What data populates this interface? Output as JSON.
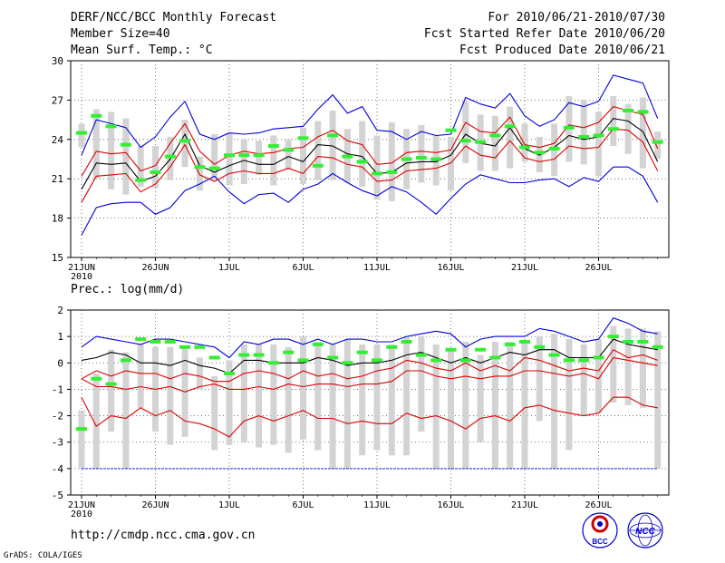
{
  "header": {
    "title": "DERF/NCC/BCC Monthly Forecast",
    "member_size": "Member Size=40",
    "variable_top": "Mean Surf. Temp.: °C",
    "fcst_for": "For 2010/06/21-2010/07/30",
    "fcst_started": "Fcst Started Refer Date 2010/06/20",
    "fcst_produced": "Fcst Produced Date 2010/06/21"
  },
  "footer": {
    "url": "http://cmdp.ncc.cma.gov.cn",
    "grads": "GrADS: COLA/IGES",
    "logo_bcc": "BCC",
    "logo_ncc": "NCC"
  },
  "chart_data": [
    {
      "type": "line",
      "title": "Mean Surf. Temp.: °C",
      "x_tick_labels": [
        "21JUN",
        "26JUN",
        "1JUL",
        "6JUL",
        "11JUL",
        "16JUL",
        "21JUL",
        "26JUL"
      ],
      "x_tick_days": [
        0,
        5,
        10,
        15,
        20,
        25,
        30,
        35
      ],
      "x_sublabel": "2010",
      "ylim": [
        15,
        30
      ],
      "y_ticks": [
        15,
        18,
        21,
        24,
        27,
        30
      ],
      "days": 40,
      "series": [
        {
          "name": "max",
          "color": "#0000dd",
          "values": [
            16.7,
            18.8,
            19.1,
            19.2,
            19.2,
            18.3,
            18.8,
            20.1,
            20.6,
            21.2,
            20.0,
            19.1,
            19.8,
            19.9,
            19.2,
            20.2,
            20.6,
            21.4,
            20.7,
            20.1,
            19.7,
            20.4,
            20.0,
            19.2,
            18.3,
            19.5,
            20.6,
            21.3,
            21.0,
            20.7,
            20.7,
            20.9,
            21.0,
            20.4,
            21.1,
            20.8,
            21.9,
            21.9,
            21.2,
            19.2
          ]
        },
        {
          "name": "p90",
          "color": "#0000dd",
          "values": [
            22.8,
            25.5,
            25.2,
            24.9,
            23.4,
            24.2,
            25.7,
            26.9,
            24.4,
            24.0,
            24.5,
            24.4,
            24.5,
            24.8,
            24.9,
            25.0,
            26.3,
            27.4,
            26.0,
            26.5,
            24.7,
            24.6,
            24.0,
            24.6,
            24.3,
            24.4,
            27.2,
            26.7,
            26.4,
            27.5,
            25.8,
            25.0,
            25.5,
            26.8,
            26.5,
            26.9,
            28.9,
            28.6,
            28.3,
            25.6
          ]
        },
        {
          "name": "upper",
          "color": "#dd0000",
          "values": [
            21.2,
            23.1,
            22.9,
            23.0,
            21.6,
            22.0,
            23.7,
            25.2,
            23.1,
            22.1,
            22.8,
            23.1,
            22.9,
            23.0,
            23.3,
            23.4,
            24.2,
            24.7,
            23.9,
            23.6,
            22.1,
            22.2,
            23.0,
            23.1,
            23.0,
            23.2,
            25.3,
            24.6,
            24.5,
            25.7,
            23.6,
            23.4,
            23.7,
            25.1,
            24.9,
            25.3,
            26.5,
            26.2,
            25.9,
            23.3
          ]
        },
        {
          "name": "mean",
          "color": "#000000",
          "values": [
            20.2,
            22.2,
            22.1,
            22.2,
            20.8,
            21.2,
            22.5,
            24.4,
            22.0,
            21.5,
            22.0,
            22.4,
            22.1,
            22.1,
            22.7,
            22.3,
            23.6,
            23.5,
            22.9,
            22.7,
            21.4,
            21.5,
            22.2,
            22.3,
            22.3,
            22.8,
            24.4,
            23.7,
            23.5,
            24.9,
            23.3,
            22.8,
            23.4,
            24.3,
            24.0,
            24.2,
            25.6,
            25.4,
            24.6,
            22.3
          ]
        },
        {
          "name": "lower",
          "color": "#dd0000",
          "values": [
            19.2,
            21.2,
            21.3,
            21.4,
            20.0,
            20.6,
            21.9,
            23.6,
            21.3,
            20.8,
            21.4,
            21.6,
            21.4,
            21.4,
            21.8,
            21.4,
            22.7,
            22.6,
            22.1,
            21.9,
            20.8,
            20.9,
            21.6,
            21.7,
            21.8,
            22.2,
            23.5,
            22.8,
            22.6,
            23.9,
            22.6,
            22.3,
            22.5,
            23.5,
            23.3,
            23.4,
            24.8,
            24.7,
            23.8,
            21.6
          ]
        }
      ],
      "box_low": [
        23.4,
        21.0,
        20.2,
        19.8,
        20.4,
        20.3,
        20.9,
        21.9,
        20.1,
        20.9,
        20.5,
        20.6,
        21.3,
        20.5,
        21.7,
        20.6,
        20.9,
        20.9,
        20.7,
        20.4,
        19.4,
        19.3,
        20.2,
        20.7,
        20.5,
        20.1,
        22.2,
        21.6,
        21.6,
        21.8,
        22.3,
        21.5,
        21.2,
        22.3,
        22.1,
        21.2,
        23.5,
        22.9,
        21.8,
        22.5
      ],
      "box_high": [
        25.2,
        26.3,
        26.1,
        25.6,
        23.5,
        23.5,
        24.2,
        25.5,
        22.7,
        24.4,
        24.5,
        24.0,
        23.9,
        24.3,
        24.0,
        24.9,
        25.4,
        26.2,
        24.8,
        25.4,
        24.3,
        25.3,
        24.8,
        25.1,
        24.3,
        24.2,
        26.9,
        25.9,
        25.8,
        26.5,
        25.2,
        24.2,
        25.2,
        27.3,
        27.0,
        26.1,
        27.3,
        26.7,
        27.2,
        24.6
      ],
      "observed": [
        24.5,
        25.8,
        25.0,
        23.6,
        20.9,
        21.5,
        22.7,
        23.9,
        21.9,
        21.8,
        22.8,
        22.8,
        22.8,
        23.5,
        23.2,
        24.1,
        22.0,
        24.3,
        22.7,
        22.3,
        21.4,
        21.5,
        22.5,
        22.6,
        22.5,
        24.7,
        23.9,
        23.8,
        24.3,
        25.0,
        23.4,
        23.0,
        23.3,
        24.9,
        24.2,
        24.3,
        24.8,
        26.2,
        26.1,
        23.8
      ]
    },
    {
      "type": "line",
      "title": "Prec.: log(mm/d)",
      "x_tick_labels": [
        "21JUN",
        "26JUN",
        "1JUL",
        "6JUL",
        "11JUL",
        "16JUL",
        "21JUL",
        "26JUL"
      ],
      "x_tick_days": [
        0,
        5,
        10,
        15,
        20,
        25,
        30,
        35
      ],
      "x_sublabel": "2010",
      "ylim": [
        -5,
        2
      ],
      "y_ticks": [
        -5,
        -4,
        -3,
        -2,
        -1,
        0,
        1,
        2
      ],
      "days": 40,
      "series": [
        {
          "name": "p90",
          "color": "#0000dd",
          "values": [
            0.6,
            1.0,
            0.9,
            0.8,
            0.7,
            0.9,
            0.9,
            0.8,
            0.7,
            0.6,
            0.2,
            0.8,
            0.7,
            0.9,
            0.9,
            0.7,
            0.9,
            0.7,
            0.9,
            0.9,
            0.8,
            0.8,
            1.0,
            1.1,
            1.2,
            1.1,
            0.6,
            0.9,
            1.0,
            1.0,
            1.0,
            1.3,
            1.2,
            1.0,
            0.8,
            0.9,
            1.7,
            1.5,
            1.2,
            1.1
          ]
        },
        {
          "name": "upper",
          "color": "#dd0000",
          "values": [
            -0.6,
            -0.3,
            -0.5,
            -0.3,
            -0.4,
            -0.4,
            -0.6,
            -0.4,
            -0.5,
            -0.7,
            -0.7,
            -0.4,
            -0.3,
            -0.4,
            -0.6,
            -0.3,
            -0.5,
            -0.4,
            -0.6,
            -0.5,
            -0.3,
            -0.2,
            0.1,
            0.0,
            -0.2,
            -0.3,
            0.0,
            -0.3,
            -0.1,
            -0.3,
            0.2,
            0.1,
            -0.1,
            -0.3,
            -0.2,
            -0.3,
            0.5,
            0.2,
            0.3,
            0.1
          ]
        },
        {
          "name": "mean",
          "color": "#000000",
          "values": [
            0.1,
            0.2,
            0.4,
            0.3,
            0.0,
            0.0,
            -0.1,
            0.1,
            -0.1,
            -0.2,
            -0.4,
            0.1,
            0.1,
            0.0,
            0.0,
            0.0,
            0.2,
            0.1,
            -0.1,
            0.0,
            0.0,
            0.1,
            0.3,
            0.4,
            0.2,
            0.0,
            0.2,
            0.0,
            0.2,
            0.4,
            0.3,
            0.5,
            0.5,
            0.2,
            0.2,
            0.2,
            0.9,
            0.7,
            0.6,
            0.5
          ]
        },
        {
          "name": "lower",
          "color": "#dd0000",
          "values": [
            -0.6,
            -0.9,
            -0.9,
            -1.0,
            -0.9,
            -1.0,
            -0.9,
            -1.1,
            -0.9,
            -0.8,
            -1.0,
            -1.0,
            -0.9,
            -1.0,
            -0.8,
            -0.9,
            -0.8,
            -0.8,
            -0.9,
            -0.8,
            -0.8,
            -0.7,
            -0.3,
            -0.3,
            -0.5,
            -0.6,
            -0.5,
            -0.6,
            -0.5,
            -0.5,
            -0.3,
            -0.3,
            -0.4,
            -0.5,
            -0.4,
            -0.6,
            0.2,
            0.1,
            0.0,
            -0.1
          ]
        },
        {
          "name": "min",
          "color": "#dd0000",
          "values": [
            -1.3,
            -2.4,
            -2.0,
            -2.1,
            -1.7,
            -2.0,
            -1.8,
            -2.2,
            -2.3,
            -2.5,
            -2.8,
            -2.2,
            -2.0,
            -2.2,
            -2.0,
            -1.8,
            -2.1,
            -2.1,
            -2.3,
            -2.2,
            -2.3,
            -2.3,
            -1.9,
            -2.1,
            -2.0,
            -2.2,
            -2.5,
            -2.1,
            -2.0,
            -2.2,
            -1.7,
            -1.6,
            -1.8,
            -1.9,
            -2.0,
            -1.9,
            -1.3,
            -1.3,
            -1.6,
            -1.7
          ]
        },
        {
          "name": "floor",
          "color": "#0000dd",
          "values": [
            -4,
            -4,
            -4,
            -4,
            -4,
            -4,
            -4,
            -4,
            -4,
            -4,
            -4,
            -4,
            -4,
            -4,
            -4,
            -4,
            -4,
            -4,
            -4,
            -4,
            -4,
            -4,
            -4,
            -4,
            -4,
            -4,
            -4,
            -4,
            -4,
            -4,
            -4,
            -4,
            -4,
            -4,
            -4,
            -4,
            -4,
            -4,
            -4,
            -4
          ]
        }
      ],
      "box_low": [
        -4.0,
        -4.0,
        -2.6,
        -4.0,
        -1.7,
        -2.6,
        -3.1,
        -2.8,
        -1.0,
        -3.3,
        -3.1,
        -3.0,
        -3.2,
        -3.1,
        -3.4,
        -2.9,
        -3.3,
        -4.0,
        -4.0,
        -3.5,
        -3.3,
        -3.5,
        -3.5,
        -2.6,
        -4.0,
        -4.0,
        -4.0,
        -3.0,
        -4.0,
        -4.0,
        -4.0,
        -2.2,
        -4.0,
        -3.3,
        -2.0,
        -1.9,
        -1.5,
        -1.6,
        -1.7,
        -4.0
      ],
      "box_high": [
        -1.8,
        -0.4,
        0.5,
        0.4,
        0.7,
        0.6,
        0.6,
        0.6,
        0.2,
        -0.5,
        0.1,
        0.7,
        0.7,
        0.7,
        0.6,
        1.0,
        0.8,
        0.7,
        0.9,
        0.7,
        0.7,
        0.7,
        1.0,
        1.0,
        0.7,
        0.5,
        0.8,
        0.3,
        0.8,
        0.8,
        0.8,
        1.0,
        1.1,
        0.9,
        0.7,
        0.9,
        1.4,
        1.3,
        1.3,
        1.2
      ],
      "observed": [
        -2.5,
        -0.6,
        -0.8,
        0.1,
        0.9,
        0.8,
        0.8,
        0.6,
        0.6,
        0.2,
        -0.4,
        0.3,
        0.3,
        0.0,
        0.4,
        0.1,
        0.7,
        0.2,
        0.0,
        0.4,
        0.1,
        0.6,
        0.8,
        0.3,
        0.1,
        0.5,
        0.1,
        0.5,
        0.2,
        0.7,
        0.8,
        0.6,
        0.3,
        0.1,
        0.1,
        0.2,
        1.0,
        0.8,
        0.8,
        0.6
      ]
    }
  ]
}
